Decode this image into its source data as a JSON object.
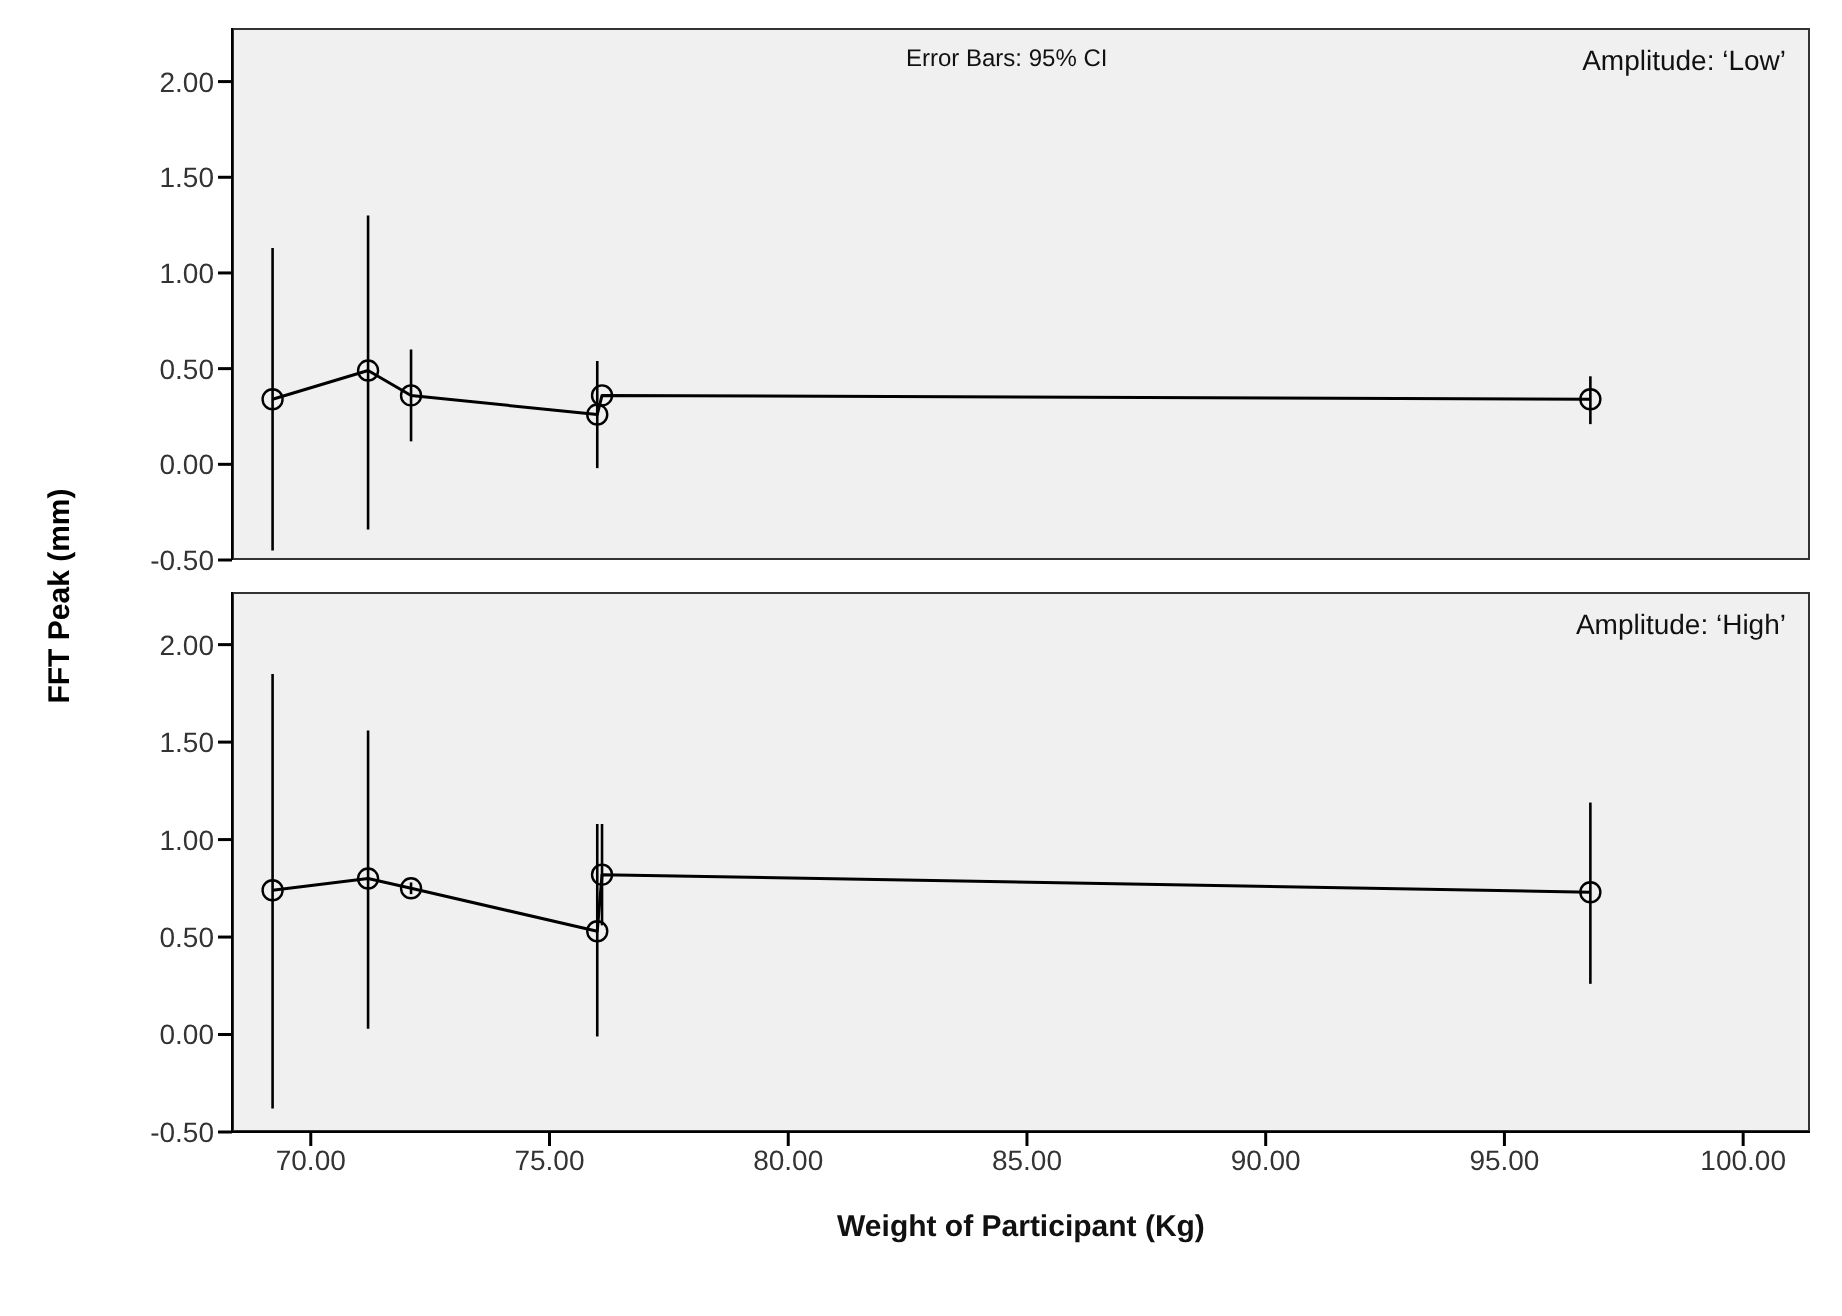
{
  "chart_data": [
    {
      "type": "line",
      "ylabel": "FFT Peak (mm)",
      "annotations": [
        "Error Bars: 95% CI",
        "Amplitude: ‘Low’"
      ],
      "x": [
        69.2,
        71.2,
        72.1,
        76.0,
        76.1,
        96.8
      ],
      "series": [
        {
          "color": "#000000",
          "values": [
            0.34,
            0.49,
            0.36,
            0.26,
            0.36,
            0.34
          ],
          "errors": [
            [
              -0.45,
              1.13
            ],
            [
              -0.34,
              1.3
            ],
            [
              0.12,
              0.6
            ],
            [
              -0.02,
              0.54
            ],
            null,
            [
              0.21,
              0.46
            ]
          ]
        }
      ],
      "marker": "circle",
      "xlim": [
        68.35,
        101.4
      ],
      "ylim": [
        -0.5,
        2.28
      ],
      "yticks": [
        {
          "value": -0.5,
          "label": "-0.50"
        },
        {
          "value": 0,
          "label": "0.00"
        },
        {
          "value": 0.5,
          "label": "0.50"
        },
        {
          "value": 1,
          "label": "1.00"
        },
        {
          "value": 1.5,
          "label": "1.50"
        },
        {
          "value": 2,
          "label": "2.00"
        }
      ],
      "tick_labels": "y"
    },
    {
      "type": "line",
      "xlabel": "Weight of Participant (Kg)",
      "annotations": [
        "Amplitude: ‘High’"
      ],
      "x": [
        69.2,
        71.2,
        72.1,
        76.0,
        76.1,
        96.8
      ],
      "series": [
        {
          "color": "#000000",
          "values": [
            0.74,
            0.8,
            0.75,
            0.53,
            0.82,
            0.73
          ],
          "errors": [
            [
              -0.38,
              1.85
            ],
            [
              0.03,
              1.56
            ],
            [
              0.72,
              0.78
            ],
            [
              -0.01,
              1.08
            ],
            [
              0.56,
              1.08
            ],
            [
              0.26,
              1.19
            ]
          ]
        }
      ],
      "marker": "circle",
      "xlim": [
        68.35,
        101.4
      ],
      "xticks": [
        {
          "value": 70,
          "label": "70.00"
        },
        {
          "value": 75,
          "label": "75.00"
        },
        {
          "value": 80,
          "label": "80.00"
        },
        {
          "value": 85,
          "label": "85.00"
        },
        {
          "value": 90,
          "label": "90.00"
        },
        {
          "value": 95,
          "label": "95.00"
        },
        {
          "value": 100,
          "label": "100.00"
        }
      ],
      "ylim": [
        -0.5,
        2.27
      ],
      "yticks": [
        {
          "value": -0.5,
          "label": "-0.50"
        },
        {
          "value": 0,
          "label": "0.00"
        },
        {
          "value": 0.5,
          "label": "0.50"
        },
        {
          "value": 1,
          "label": "1.00"
        },
        {
          "value": 1.5,
          "label": "1.50"
        },
        {
          "value": 2,
          "label": "2.00"
        }
      ]
    }
  ]
}
